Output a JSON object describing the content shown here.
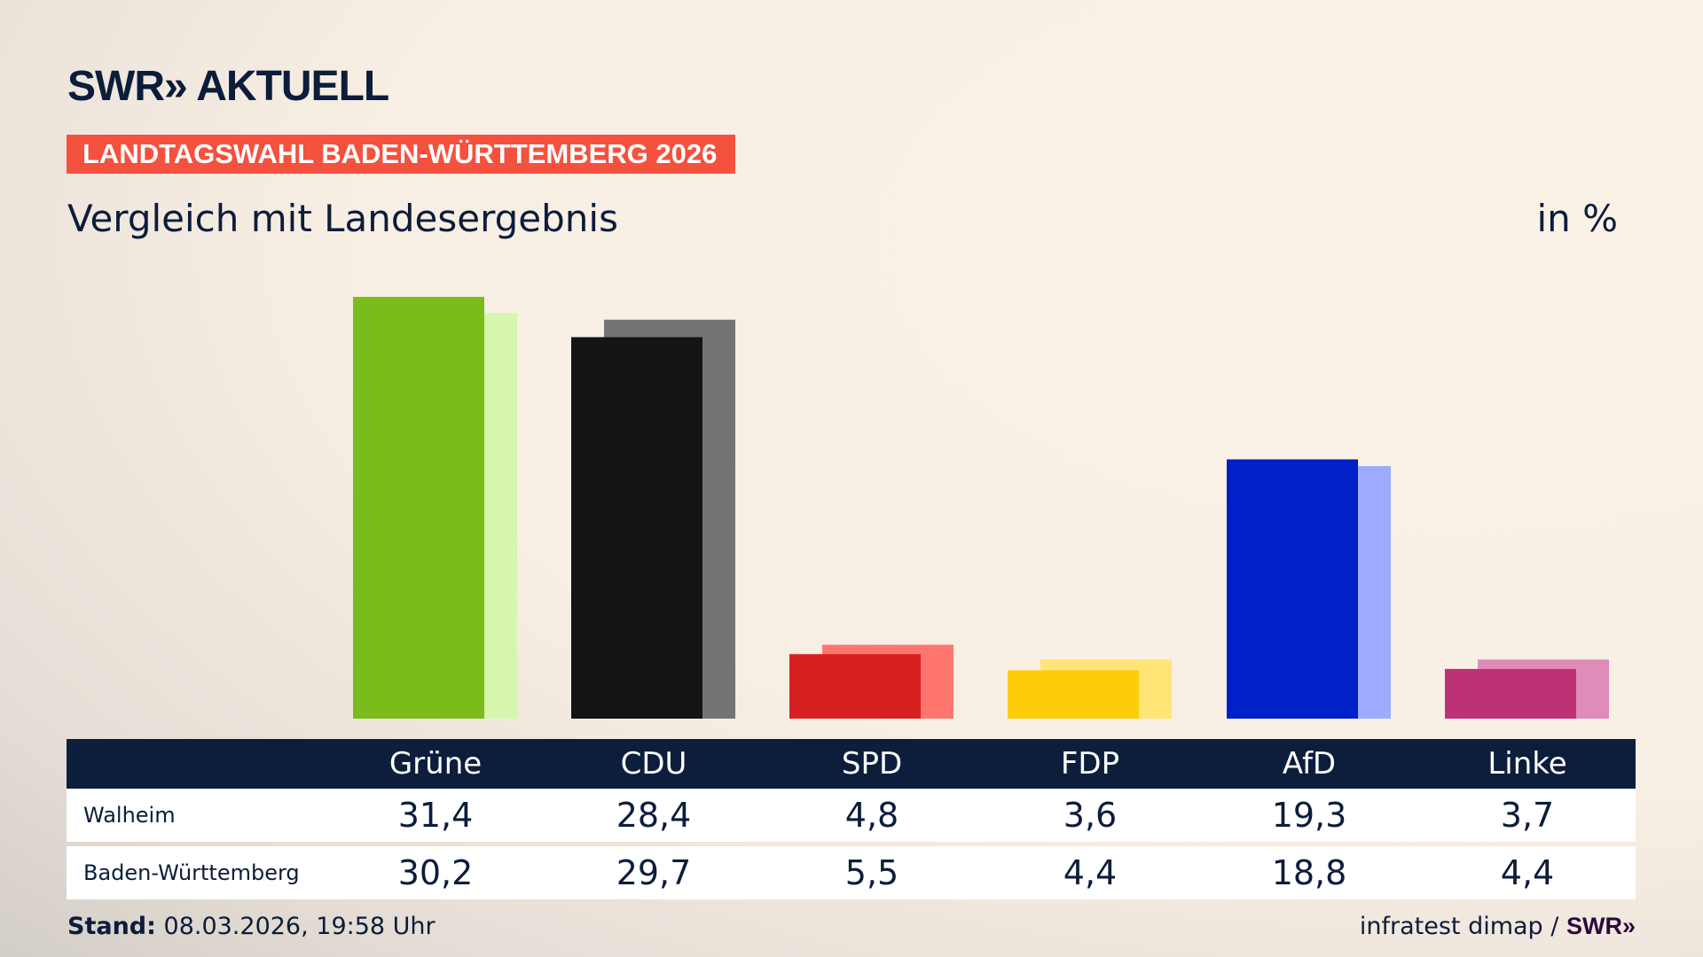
{
  "header": {
    "logo": "SWR» AKTUELL",
    "banner": "LANDTAGSWAHL BADEN-WÜRTTEMBERG 2026",
    "subtitle": "Vergleich mit Landesergebnis",
    "unit": "in %"
  },
  "chart_data": {
    "type": "bar",
    "title": "Vergleich mit Landesergebnis",
    "ylabel": "in %",
    "ylim": [
      0,
      31.4
    ],
    "grid": false,
    "categories": [
      "Grüne",
      "CDU",
      "SPD",
      "FDP",
      "AfD",
      "Linke"
    ],
    "series": [
      {
        "name": "Walheim",
        "values": [
          31.4,
          28.4,
          4.8,
          3.6,
          19.3,
          3.7
        ],
        "colors": [
          "#79bc1c",
          "#141414",
          "#d71f20",
          "#fdcd0c",
          "#0020c8",
          "#bd3276"
        ]
      },
      {
        "name": "Baden-Württemberg",
        "values": [
          30.2,
          29.7,
          5.5,
          4.4,
          18.8,
          4.4
        ],
        "colors": [
          "#d6f5ad",
          "#747474",
          "#ff766f",
          "#ffe476",
          "#9dabff",
          "#df8cba"
        ]
      }
    ]
  },
  "table": {
    "headers": [
      "Grüne",
      "CDU",
      "SPD",
      "FDP",
      "AfD",
      "Linke"
    ],
    "rows": [
      {
        "label": "Walheim",
        "values": [
          "31,4",
          "28,4",
          "4,8",
          "3,6",
          "19,3",
          "3,7"
        ]
      },
      {
        "label": "Baden-Württemberg",
        "values": [
          "30,2",
          "29,7",
          "5,5",
          "4,4",
          "18,8",
          "4,4"
        ]
      }
    ]
  },
  "footer": {
    "stand_label": "Stand:",
    "stand_value": "08.03.2026, 19:58 Uhr",
    "source": "infratest dimap /",
    "source_logo": "SWR»"
  }
}
